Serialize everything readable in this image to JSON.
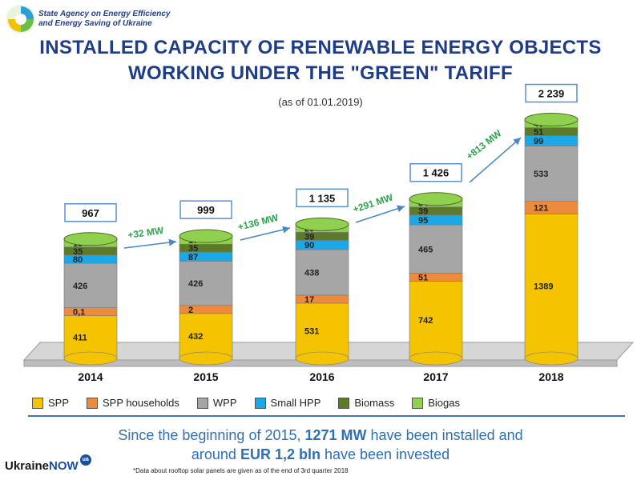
{
  "header": {
    "agency_line1": "State Agency on Energy Efficiency",
    "agency_line2": "and Energy Saving of Ukraine"
  },
  "footer": {
    "line1_before": "Since the beginning of 2015, ",
    "line1_bold": "1271 MW",
    "line1_after": " have been installed and",
    "line2_before": "around ",
    "line2_bold": "EUR 1,2 bln",
    "line2_after": " have been invested",
    "brand_word": "Ukraine",
    "brand_now": "NOW",
    "brand_badge": "ua",
    "note": "*Data about rooftop solar panels are given as of the end of 3rd quarter 2018"
  },
  "colors": {
    "title": "#1e3c87",
    "growth": "#2aa54a",
    "arrow": "#4a86c8",
    "total_box_border": "#5a8fd0",
    "footer_text": "#2f6fb5"
  },
  "chart_data": {
    "type": "bar",
    "stacked": true,
    "title": "INSTALLED CAPACITY OF RENEWABLE ENERGY OBJECTS WORKING UNDER THE \"GREEN\" TARIFF",
    "subtitle": "(as of 01.01.2019)",
    "categories": [
      "2014",
      "2015",
      "2016",
      "2017",
      "2018"
    ],
    "series": [
      {
        "name": "SPP",
        "color": "#f5c400",
        "values": [
          411,
          432,
          531,
          742,
          1389
        ],
        "labels": [
          "411",
          "432",
          "531",
          "742",
          "1389"
        ]
      },
      {
        "name": "SPP households",
        "color": "#ee8a3c",
        "values": [
          0.1,
          2,
          17,
          51,
          121
        ],
        "labels": [
          "0,1",
          "2",
          "17",
          "51",
          "121"
        ]
      },
      {
        "name": "WPP",
        "color": "#a6a6a6",
        "values": [
          426,
          426,
          438,
          465,
          533
        ],
        "labels": [
          "426",
          "426",
          "438",
          "465",
          "533"
        ]
      },
      {
        "name": "Small HPP",
        "color": "#1aa8e6",
        "values": [
          80,
          87,
          90,
          95,
          99
        ],
        "labels": [
          "80",
          "87",
          "90",
          "95",
          "99"
        ]
      },
      {
        "name": "Biomass",
        "color": "#5c7a2a",
        "values": [
          35,
          35,
          39,
          39,
          51
        ],
        "labels": [
          "35",
          "35",
          "39",
          "39",
          "51"
        ]
      },
      {
        "name": "Biogas",
        "color": "#8fd14f",
        "values": [
          15,
          17,
          20,
          34,
          46
        ],
        "labels": [
          "15",
          "17",
          "20",
          "34",
          "46"
        ]
      }
    ],
    "totals": [
      "967",
      "999",
      "1 135",
      "1 426",
      "2 239"
    ],
    "growth": [
      "+32 MW",
      "+136 MW",
      "+291 MW",
      "+813 MW"
    ],
    "legend_position": "bottom",
    "grid": false
  }
}
